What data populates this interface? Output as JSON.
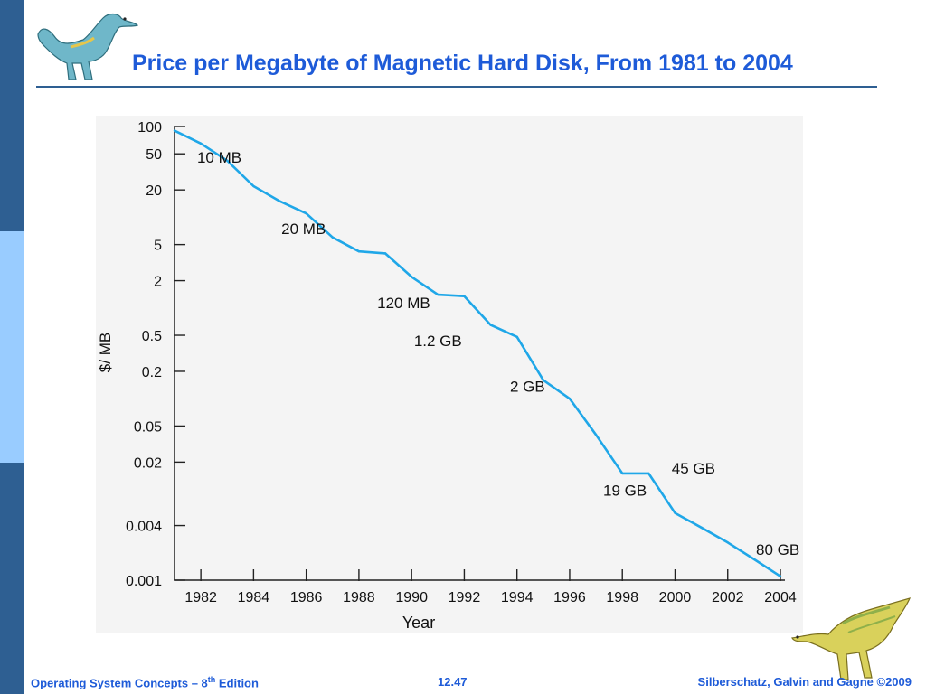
{
  "slide": {
    "title": "Price per Megabyte of Magnetic Hard Disk, From 1981 to 2004",
    "footer_left_main": "Operating System Concepts – 8",
    "footer_left_sup": "th",
    "footer_left_tail": " Edition",
    "footer_center": "12.47",
    "footer_right": "Silberschatz, Galvin and Gagne ©2009"
  },
  "colors": {
    "title": "#1e5bd8",
    "sidebar_dark": "#2e5f92",
    "sidebar_light": "#99ccff",
    "line": "#1fa7e8"
  },
  "chart_data": {
    "type": "line",
    "title": "",
    "xlabel": "Year",
    "ylabel": "$/ MB",
    "y_scale": "log",
    "xlim": [
      1981,
      2004
    ],
    "y_ticks": [
      {
        "value": 100,
        "label": "100"
      },
      {
        "value": 50,
        "label": "50"
      },
      {
        "value": 20,
        "label": "20"
      },
      {
        "value": 5,
        "label": "5"
      },
      {
        "value": 2,
        "label": "2"
      },
      {
        "value": 0.5,
        "label": "0.5"
      },
      {
        "value": 0.2,
        "label": "0.2"
      },
      {
        "value": 0.05,
        "label": "0.05"
      },
      {
        "value": 0.02,
        "label": "0.02"
      },
      {
        "value": 0.004,
        "label": "0.004"
      },
      {
        "value": 0.001,
        "label": "0.001"
      }
    ],
    "x_ticks": [
      1982,
      1984,
      1986,
      1988,
      1990,
      1992,
      1994,
      1996,
      1998,
      2000,
      2002,
      2004
    ],
    "grid": false,
    "series": [
      {
        "x": [
          1981,
          1982,
          1983,
          1984,
          1985,
          1986,
          1987,
          1988,
          1989,
          1990,
          1991,
          1992,
          1993,
          1994,
          1995,
          1996,
          1997,
          1998,
          1999,
          2000,
          2001,
          2002,
          2003,
          2004
        ],
        "y": [
          90,
          65,
          42,
          22,
          15,
          11,
          6,
          4.2,
          4.0,
          2.2,
          1.4,
          1.35,
          0.65,
          0.48,
          0.16,
          0.1,
          0.04,
          0.015,
          0.015,
          0.0055,
          0.0038,
          0.0026,
          0.0017,
          0.0011
        ]
      }
    ],
    "annotations": [
      {
        "text": "10 MB",
        "x": 1982.7,
        "y": 40
      },
      {
        "text": "20 MB",
        "x": 1985.9,
        "y": 6.5
      },
      {
        "text": "120 MB",
        "x": 1989.7,
        "y": 1.0
      },
      {
        "text": "1.2 GB",
        "x": 1991.0,
        "y": 0.38
      },
      {
        "text": "2 GB",
        "x": 1994.4,
        "y": 0.12
      },
      {
        "text": "19 GB",
        "x": 1998.1,
        "y": 0.0085
      },
      {
        "text": "45 GB",
        "x": 2000.7,
        "y": 0.015
      },
      {
        "text": "80 GB",
        "x": 2003.9,
        "y": 0.0019
      }
    ]
  }
}
